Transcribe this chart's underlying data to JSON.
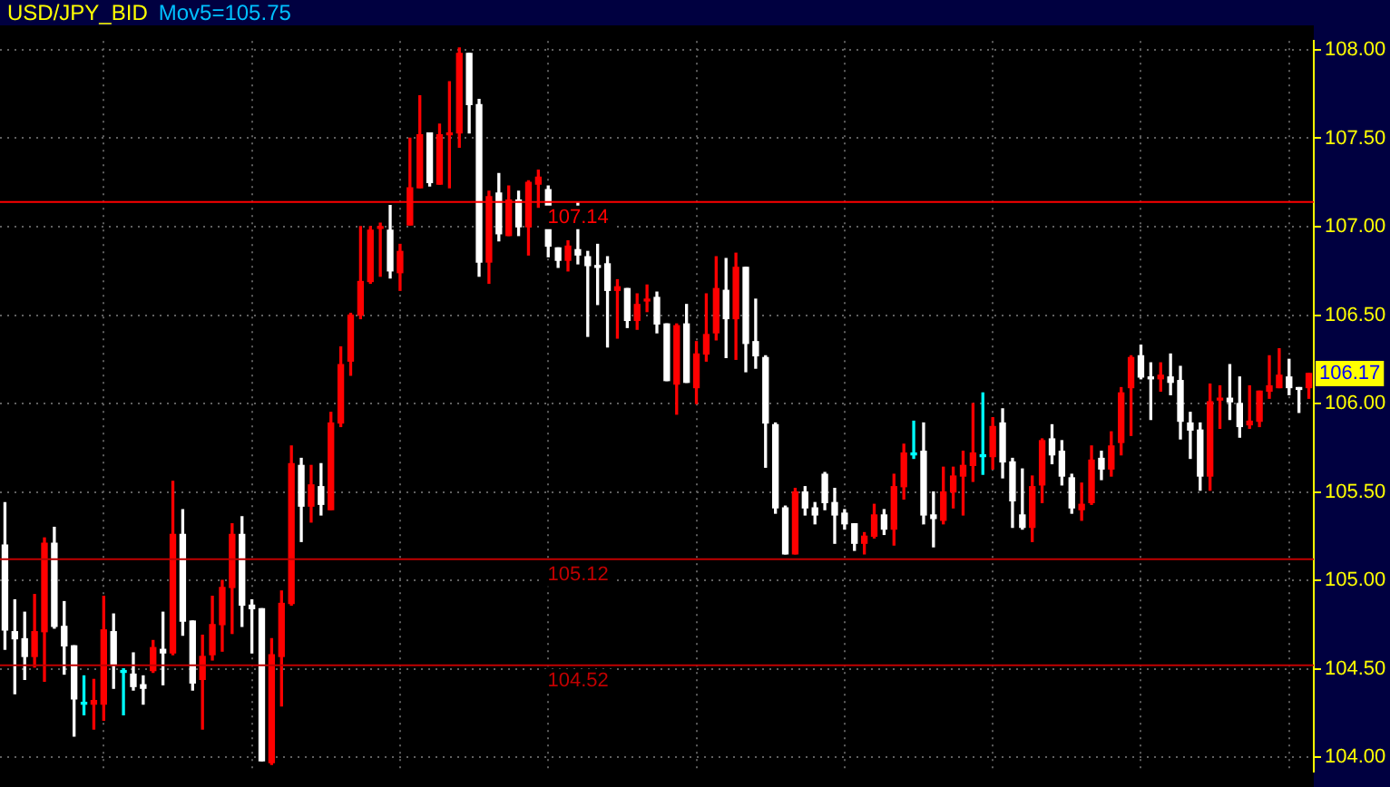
{
  "chart_data": {
    "type": "candlestick",
    "title": "USD/JPY_BID",
    "subtitle": "Mov5=105.75",
    "categories": [
      null,
      null,
      null,
      null,
      null,
      null,
      null,
      null,
      null,
      null,
      null,
      null,
      null,
      null,
      null,
      null,
      null,
      null,
      null,
      null,
      null,
      null,
      null,
      null,
      null,
      null,
      null,
      null,
      null,
      null,
      null,
      null,
      null,
      null,
      null,
      null,
      null,
      null,
      null,
      null,
      null,
      null,
      null,
      null,
      null,
      null,
      null,
      null,
      null,
      null,
      null,
      null,
      null,
      null,
      null,
      null,
      null,
      null,
      null,
      null,
      null,
      null,
      null,
      null,
      null,
      null,
      null,
      null,
      null,
      null,
      null,
      null,
      null,
      null,
      null,
      null,
      null,
      null,
      null,
      null,
      null,
      null,
      null,
      null,
      null,
      null,
      null,
      null,
      null,
      null,
      null,
      null,
      null,
      null,
      null,
      null,
      null,
      null,
      null,
      null,
      null,
      null,
      null,
      null,
      null,
      null,
      null,
      null,
      null,
      null,
      null,
      null,
      null,
      null,
      null,
      null,
      null,
      null,
      null,
      null,
      null,
      null,
      null,
      null,
      null,
      null,
      null,
      null,
      null,
      null,
      null,
      null,
      null
    ],
    "ohlc": [
      [
        105.2,
        105.44,
        104.61,
        104.72
      ],
      [
        104.71,
        104.89,
        104.36,
        104.67
      ],
      [
        104.67,
        104.82,
        104.44,
        104.57
      ],
      [
        104.57,
        104.92,
        104.51,
        104.71
      ],
      [
        104.71,
        105.24,
        104.43,
        105.21
      ],
      [
        105.21,
        105.3,
        104.73,
        104.74
      ],
      [
        104.74,
        104.88,
        104.47,
        104.63
      ],
      [
        104.63,
        104.63,
        104.12,
        104.33
      ],
      [
        104.3,
        104.46,
        104.24,
        104.3
      ],
      [
        104.3,
        104.44,
        104.16,
        104.32
      ],
      [
        104.3,
        104.91,
        104.21,
        104.72
      ],
      [
        104.71,
        104.81,
        104.39,
        104.52
      ],
      [
        104.48,
        104.5,
        104.24,
        104.48
      ],
      [
        104.47,
        104.59,
        104.38,
        104.4
      ],
      [
        104.41,
        104.46,
        104.3,
        104.39
      ],
      [
        104.49,
        104.66,
        104.48,
        104.62
      ],
      [
        104.61,
        104.82,
        104.41,
        104.59
      ],
      [
        104.59,
        105.56,
        104.58,
        105.26
      ],
      [
        105.26,
        105.4,
        104.69,
        104.77
      ],
      [
        104.77,
        104.77,
        104.38,
        104.42
      ],
      [
        104.44,
        104.69,
        104.16,
        104.57
      ],
      [
        104.58,
        104.91,
        104.55,
        104.75
      ],
      [
        104.75,
        105.0,
        104.6,
        104.96
      ],
      [
        104.96,
        105.32,
        104.7,
        105.26
      ],
      [
        105.26,
        105.36,
        104.74,
        104.86
      ],
      [
        104.86,
        104.89,
        104.59,
        104.84
      ],
      [
        104.84,
        104.84,
        103.98,
        103.98
      ],
      [
        103.97,
        104.67,
        103.96,
        104.58
      ],
      [
        104.57,
        104.94,
        104.29,
        104.87
      ],
      [
        104.87,
        105.76,
        104.86,
        105.66
      ],
      [
        105.65,
        105.69,
        105.22,
        105.42
      ],
      [
        105.42,
        105.65,
        105.33,
        105.54
      ],
      [
        105.53,
        105.66,
        105.37,
        105.43
      ],
      [
        105.4,
        105.95,
        105.4,
        105.89
      ],
      [
        105.89,
        106.32,
        105.87,
        106.22
      ],
      [
        106.24,
        106.51,
        106.16,
        106.5
      ],
      [
        106.5,
        107.0,
        106.48,
        106.69
      ],
      [
        106.69,
        107.0,
        106.68,
        106.98
      ],
      [
        106.99,
        107.02,
        106.72,
        107.0
      ],
      [
        106.98,
        107.12,
        106.71,
        106.75
      ],
      [
        106.74,
        106.9,
        106.64,
        106.86
      ],
      [
        107.01,
        107.5,
        107.01,
        107.22
      ],
      [
        107.22,
        107.74,
        107.22,
        107.52
      ],
      [
        107.53,
        107.53,
        107.23,
        107.25
      ],
      [
        107.24,
        107.58,
        107.24,
        107.52
      ],
      [
        107.52,
        107.82,
        107.22,
        107.53
      ],
      [
        107.53,
        108.01,
        107.45,
        107.98
      ],
      [
        107.98,
        107.98,
        107.53,
        107.69
      ],
      [
        107.69,
        107.72,
        106.72,
        106.8
      ],
      [
        106.8,
        107.2,
        106.68,
        107.17
      ],
      [
        107.19,
        107.3,
        106.92,
        106.96
      ],
      [
        106.95,
        107.23,
        106.95,
        107.15
      ],
      [
        107.15,
        107.2,
        106.95,
        107.0
      ],
      [
        107.0,
        107.26,
        106.84,
        107.25
      ],
      [
        107.24,
        107.32,
        107.11,
        107.28
      ],
      [
        107.21,
        107.23,
        106.83,
        106.89
      ],
      [
        106.88,
        106.88,
        106.77,
        106.81
      ],
      [
        106.81,
        106.92,
        106.75,
        106.89
      ],
      [
        106.87,
        107.14,
        106.79,
        106.84
      ],
      [
        106.83,
        106.86,
        106.38,
        106.78
      ],
      [
        106.78,
        106.9,
        106.56,
        106.77
      ],
      [
        106.79,
        106.83,
        106.32,
        106.64
      ],
      [
        106.64,
        106.7,
        106.37,
        106.66
      ],
      [
        106.65,
        106.65,
        106.43,
        106.47
      ],
      [
        106.47,
        106.62,
        106.42,
        106.56
      ],
      [
        106.58,
        106.67,
        106.52,
        106.59
      ],
      [
        106.6,
        106.63,
        106.4,
        106.45
      ],
      [
        106.45,
        106.45,
        106.13,
        106.13
      ],
      [
        106.11,
        106.45,
        105.94,
        106.44
      ],
      [
        106.45,
        106.56,
        106.12,
        106.12
      ],
      [
        106.09,
        106.35,
        106.0,
        106.28
      ],
      [
        106.28,
        106.62,
        106.24,
        106.39
      ],
      [
        106.4,
        106.83,
        106.36,
        106.65
      ],
      [
        106.64,
        106.82,
        106.26,
        106.48
      ],
      [
        106.48,
        106.85,
        106.25,
        106.77
      ],
      [
        106.77,
        106.77,
        106.18,
        106.34
      ],
      [
        106.35,
        106.59,
        106.2,
        106.27
      ],
      [
        106.26,
        106.27,
        105.64,
        105.89
      ],
      [
        105.88,
        105.89,
        105.38,
        105.41
      ],
      [
        105.41,
        105.42,
        105.15,
        105.15
      ],
      [
        105.15,
        105.52,
        105.15,
        105.5
      ],
      [
        105.5,
        105.53,
        105.37,
        105.41
      ],
      [
        105.41,
        105.44,
        105.32,
        105.37
      ],
      [
        105.6,
        105.61,
        105.4,
        105.44
      ],
      [
        105.44,
        105.52,
        105.21,
        105.37
      ],
      [
        105.38,
        105.4,
        105.29,
        105.32
      ],
      [
        105.32,
        105.32,
        105.17,
        105.21
      ],
      [
        105.21,
        105.27,
        105.15,
        105.25
      ],
      [
        105.25,
        105.43,
        105.24,
        105.37
      ],
      [
        105.37,
        105.4,
        105.26,
        105.29
      ],
      [
        105.29,
        105.6,
        105.2,
        105.53
      ],
      [
        105.53,
        105.77,
        105.46,
        105.72
      ],
      [
        105.71,
        105.9,
        105.69,
        105.71
      ],
      [
        105.73,
        105.89,
        105.32,
        105.37
      ],
      [
        105.37,
        105.5,
        105.19,
        105.35
      ],
      [
        105.34,
        105.64,
        105.32,
        105.5
      ],
      [
        105.5,
        105.64,
        105.41,
        105.59
      ],
      [
        105.59,
        105.73,
        105.37,
        105.65
      ],
      [
        105.65,
        106.0,
        105.56,
        105.72
      ],
      [
        105.7,
        106.06,
        105.6,
        105.7
      ],
      [
        105.7,
        105.92,
        105.63,
        105.87
      ],
      [
        105.89,
        105.97,
        105.58,
        105.67
      ],
      [
        105.67,
        105.69,
        105.3,
        105.45
      ],
      [
        105.37,
        105.63,
        105.29,
        105.3
      ],
      [
        105.3,
        105.59,
        105.22,
        105.53
      ],
      [
        105.54,
        105.8,
        105.44,
        105.79
      ],
      [
        105.8,
        105.88,
        105.66,
        105.71
      ],
      [
        105.73,
        105.79,
        105.54,
        105.59
      ],
      [
        105.58,
        105.6,
        105.38,
        105.41
      ],
      [
        105.4,
        105.55,
        105.34,
        105.43
      ],
      [
        105.44,
        105.76,
        105.43,
        105.68
      ],
      [
        105.69,
        105.73,
        105.57,
        105.63
      ],
      [
        105.63,
        105.84,
        105.59,
        105.76
      ],
      [
        105.78,
        106.09,
        105.71,
        106.06
      ],
      [
        106.09,
        106.27,
        105.82,
        106.26
      ],
      [
        106.27,
        106.33,
        106.14,
        106.15
      ],
      [
        106.15,
        106.23,
        105.91,
        106.14
      ],
      [
        106.14,
        106.23,
        106.07,
        106.16
      ],
      [
        106.15,
        106.28,
        106.05,
        106.12
      ],
      [
        106.13,
        106.21,
        105.8,
        105.9
      ],
      [
        105.89,
        105.95,
        105.69,
        105.85
      ],
      [
        105.85,
        105.89,
        105.51,
        105.59
      ],
      [
        105.59,
        106.11,
        105.51,
        106.01
      ],
      [
        106.02,
        106.1,
        105.86,
        106.03
      ],
      [
        106.03,
        106.22,
        105.91,
        106.01
      ],
      [
        106.0,
        106.15,
        105.81,
        105.87
      ],
      [
        105.88,
        106.1,
        105.86,
        105.9
      ],
      [
        105.9,
        106.07,
        105.87,
        106.07
      ],
      [
        106.07,
        106.27,
        106.03,
        106.1
      ],
      [
        106.09,
        106.31,
        106.09,
        106.16
      ],
      [
        106.15,
        106.25,
        106.05,
        106.09
      ],
      [
        106.09,
        106.09,
        105.95,
        106.08
      ],
      [
        106.09,
        106.17,
        106.03,
        106.17
      ]
    ],
    "colors": [
      "#ffffff",
      "#ffffff",
      "#ffffff",
      "#ff0000",
      "#ff0000",
      "#ffffff",
      "#ffffff",
      "#ffffff",
      "#00ffff",
      "#ff0000",
      "#ff0000",
      "#ffffff",
      "#00ffff",
      "#ffffff",
      "#ffffff",
      "#ff0000",
      "#ffffff",
      "#ff0000",
      "#ffffff",
      "#ffffff",
      "#ff0000",
      "#ff0000",
      "#ff0000",
      "#ff0000",
      "#ffffff",
      "#ffffff",
      "#ffffff",
      "#ff0000",
      "#ff0000",
      "#ff0000",
      "#ffffff",
      "#ff0000",
      "#ffffff",
      "#ff0000",
      "#ff0000",
      "#ff0000",
      "#ff0000",
      "#ff0000",
      "#ff0000",
      "#ffffff",
      "#ff0000",
      "#ff0000",
      "#ff0000",
      "#ffffff",
      "#ff0000",
      "#ff0000",
      "#ff0000",
      "#ffffff",
      "#ffffff",
      "#ff0000",
      "#ffffff",
      "#ff0000",
      "#ffffff",
      "#ff0000",
      "#ff0000",
      "#ffffff",
      "#ffffff",
      "#ff0000",
      "#ffffff",
      "#ffffff",
      "#ffffff",
      "#ffffff",
      "#ff0000",
      "#ffffff",
      "#ff0000",
      "#ff0000",
      "#ffffff",
      "#ffffff",
      "#ff0000",
      "#ffffff",
      "#ff0000",
      "#ff0000",
      "#ff0000",
      "#ffffff",
      "#ff0000",
      "#ffffff",
      "#ffffff",
      "#ffffff",
      "#ffffff",
      "#ffffff",
      "#ff0000",
      "#ffffff",
      "#ffffff",
      "#ffffff",
      "#ffffff",
      "#ffffff",
      "#ffffff",
      "#ff0000",
      "#ff0000",
      "#ffffff",
      "#ff0000",
      "#ff0000",
      "#00ffff",
      "#ffffff",
      "#ffffff",
      "#ff0000",
      "#ff0000",
      "#ff0000",
      "#ff0000",
      "#00ffff",
      "#ff0000",
      "#ffffff",
      "#ffffff",
      "#ffffff",
      "#ff0000",
      "#ff0000",
      "#ffffff",
      "#ffffff",
      "#ffffff",
      "#ff0000",
      "#ff0000",
      "#ffffff",
      "#ff0000",
      "#ff0000",
      "#ff0000",
      "#ffffff",
      "#ffffff",
      "#ff0000",
      "#ffffff",
      "#ffffff",
      "#ffffff",
      "#ffffff",
      "#ff0000",
      "#ff0000",
      "#ffffff",
      "#ffffff",
      "#ff0000",
      "#ff0000",
      "#ff0000",
      "#ff0000",
      "#ffffff",
      "#ffffff",
      "#ff0000"
    ],
    "ylim": [
      103.92,
      108.05
    ],
    "yticks": [
      {
        "value": 104,
        "label": "104.00"
      },
      {
        "value": 104.5,
        "label": "104.50"
      },
      {
        "value": 105,
        "label": "105.00"
      },
      {
        "value": 105.5,
        "label": "105.50"
      },
      {
        "value": 106,
        "label": "106.00"
      },
      {
        "value": 106.5,
        "label": "106.50"
      },
      {
        "value": 107,
        "label": "107.00"
      },
      {
        "value": 107.5,
        "label": "107.50"
      },
      {
        "value": 108,
        "label": "108.00"
      }
    ],
    "grid": true,
    "tick_labels": "y",
    "ref_lines": [
      {
        "axis": "y",
        "value": 107.14,
        "label": "107.14",
        "color": "#ff0000"
      },
      {
        "axis": "y",
        "value": 105.12,
        "label": "105.12",
        "color": "#c00000"
      },
      {
        "axis": "y",
        "value": 104.52,
        "label": "104.52",
        "color": "#c00000"
      }
    ],
    "annotations": [
      {
        "text": "106.17",
        "y": 106.17
      }
    ]
  }
}
